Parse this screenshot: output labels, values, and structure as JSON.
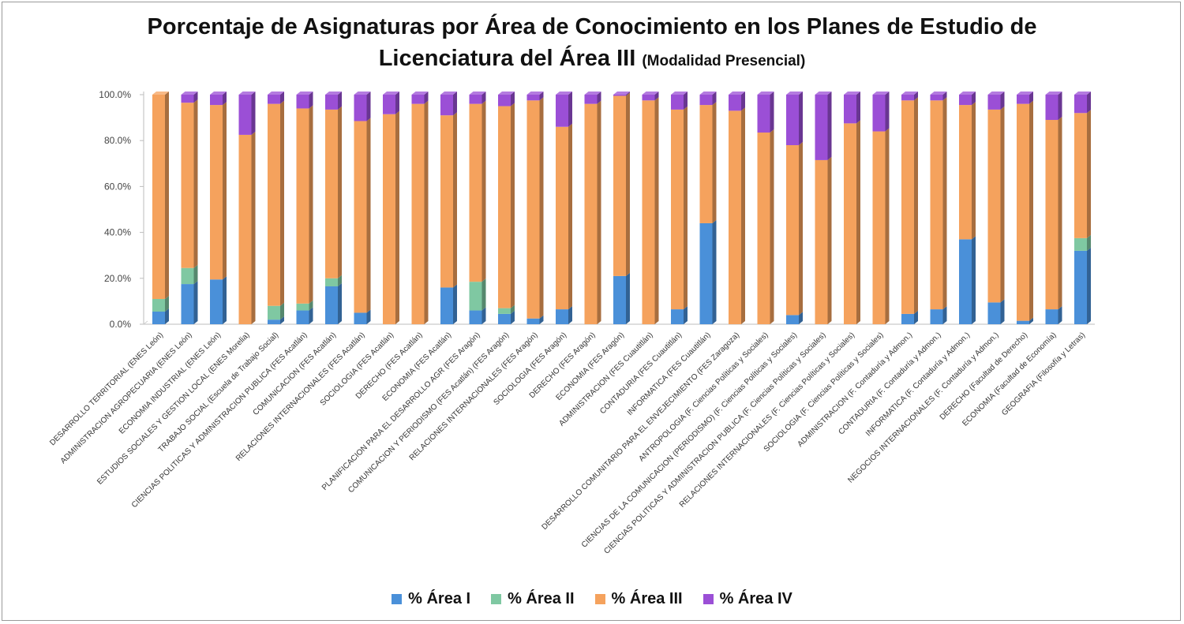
{
  "chart_data": {
    "type": "bar",
    "stacked": true,
    "three_d": true,
    "title": "Porcentaje de Asignaturas por Área de Conocimiento en los Planes de Estudio de Licenciatura del Área III",
    "title_line1": "Porcentaje de Asignaturas por Área de Conocimiento en los Planes de Estudio de",
    "title_line2": "Licenciatura del Área III",
    "subtitle": "(Modalidad Presencial)",
    "ylim": [
      0,
      100
    ],
    "yticks": [
      "0.0%",
      "20.0%",
      "40.0%",
      "60.0%",
      "80.0%",
      "100.0%"
    ],
    "grid": false,
    "legend_position": "bottom",
    "categories": [
      "DESARROLLO TERRITORIAL (ENES León)",
      "ADMINISTRACION AGROPECUARIA (ENES León)",
      "ECONOMIA INDUSTRIAL (ENES León)",
      "ESTUDIOS SOCIALES Y GESTION LOCAL (ENES Morelia)",
      "TRABAJO SOCIAL (Escuela de Trabajo Social)",
      "CIENCIAS POLITICAS Y ADMINISTRACION PUBLICA (FES Acatlán)",
      "COMUNICACION (FES Acatlán)",
      "RELACIONES INTERNACIONALES (FES Acatlán)",
      "SOCIOLOGIA (FES Acatlán)",
      "DERECHO (FES Acatlán)",
      "ECONOMIA (FES Acatlán)",
      "PLANIFICACION PARA EL DESARROLLO AGR (FES Aragón)",
      "COMUNICACION Y PERIODISMO (FES Acatlán) (FES Aragón)",
      "RELACIONES INTERNACIONALES (FES Aragón)",
      "SOCIOLOGIA (FES Aragón)",
      "DERECHO (FES Aragón)",
      "ECONOMIA (FES Aragón)",
      "ADMINISTRACION (FES Cuautitlán)",
      "CONTADURIA (FES Cuautitlán)",
      "INFORMATICA (FES Cuautitlán)",
      "DESARROLLO COMUNITARIO PARA EL ENVEJECIMIENTO (FES Zaragoza)",
      "ANTROPOLOGIA (F. Ciencias Políticas y Sociales)",
      "CIENCIAS DE LA COMUNICACION (PERIODISMO) (F. Ciencias Políticas y Sociales)",
      "CIENCIAS POLITICAS Y ADMINISTRACION PUBLICA (F. Ciencias Políticas y Sociales)",
      "RELACIONES INTERNACIONALES (F. Ciencias Políticas y Sociales)",
      "SOCIOLOGIA (F. Ciencias Políticas y Sociales)",
      "ADMINISTRACION (F. Contaduría y Admon.)",
      "CONTADURIA (F. Contaduría y Admon.)",
      "INFORMATICA (F. Contaduría y Admon.)",
      "NEGOCIOS INTERNACIONALES (F. Contaduría y Admon.)",
      "DERECHO (Facultad de Derecho)",
      "ECONOMIA (Facultad de Economía)",
      "GEOGRAFIA  (Filosofía y Letras)"
    ],
    "series": [
      {
        "name": "% Área I",
        "color": "#4a90d9",
        "values": [
          5.5,
          17.5,
          19.5,
          0,
          2,
          6,
          16.5,
          5,
          0,
          0,
          16,
          6,
          4.5,
          2.5,
          6.5,
          0,
          21,
          0,
          6.5,
          44,
          0,
          0,
          4,
          0,
          0,
          0,
          4.5,
          6.5,
          37,
          9.5,
          1.5,
          6.5,
          32
        ]
      },
      {
        "name": "% Área II",
        "color": "#7fc8a2",
        "values": [
          5.5,
          7,
          0,
          0,
          6,
          3,
          3.5,
          0,
          0,
          0,
          0,
          12.5,
          2.5,
          0,
          0,
          0,
          0,
          0,
          0,
          0,
          0,
          0,
          0,
          0,
          0,
          0,
          0,
          0,
          0,
          0,
          0,
          0,
          5.5
        ]
      },
      {
        "name": "% Área III",
        "color": "#f5a25d",
        "values": [
          89,
          72,
          76,
          82.5,
          88,
          85,
          73.5,
          83.5,
          91.5,
          96,
          75,
          77.5,
          88,
          95,
          79.5,
          96,
          78.5,
          97.5,
          87,
          51.5,
          93,
          83.5,
          74,
          71.5,
          87.5,
          84,
          93,
          91,
          58.5,
          84,
          94.5,
          82.5,
          54.5
        ]
      },
      {
        "name": "% Área IV",
        "color": "#9b4fd6",
        "values": [
          0,
          3.5,
          4.5,
          17.5,
          4,
          6,
          6.5,
          11.5,
          8.5,
          4,
          9,
          4,
          5,
          2.5,
          14,
          4,
          0.5,
          2.5,
          6.5,
          4.5,
          7,
          16.5,
          22,
          28.5,
          12.5,
          16,
          2.5,
          2.5,
          4.5,
          6.5,
          4,
          11,
          8
        ]
      }
    ]
  }
}
